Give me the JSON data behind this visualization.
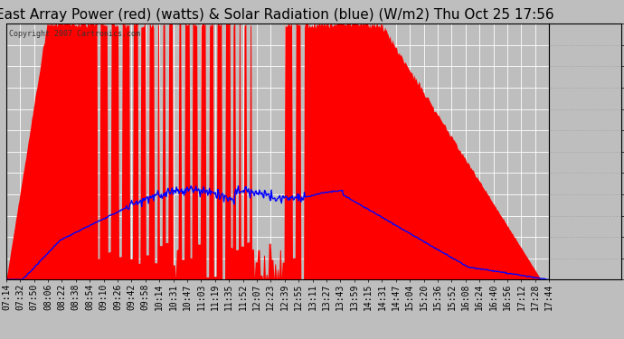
{
  "title": "East Array Power (red) (watts) & Solar Radiation (blue) (W/m2) Thu Oct 25 17:56",
  "copyright": "Copyright 2007 Cartronics.com",
  "yticks": [
    0.0,
    160.7,
    321.4,
    482.1,
    642.8,
    803.5,
    964.1,
    1124.8,
    1285.5,
    1446.2,
    1606.9,
    1767.6,
    1928.3
  ],
  "ymax": 1928.3,
  "ymin": 0.0,
  "bg_color": "#bebebe",
  "plot_bg_color": "#bebebe",
  "red_color": "#ff0000",
  "blue_color": "#0000ff",
  "title_fontsize": 11,
  "tick_fontsize": 7,
  "grid_color": "#ffffff",
  "time_labels": [
    "07:14",
    "07:32",
    "07:50",
    "08:06",
    "08:22",
    "08:38",
    "08:54",
    "09:10",
    "09:26",
    "09:42",
    "09:58",
    "10:14",
    "10:31",
    "10:47",
    "11:03",
    "11:19",
    "11:35",
    "11:52",
    "12:07",
    "12:23",
    "12:39",
    "12:55",
    "13:11",
    "13:27",
    "13:43",
    "13:59",
    "14:15",
    "14:31",
    "14:47",
    "15:04",
    "15:20",
    "15:36",
    "15:52",
    "16:08",
    "16:24",
    "16:40",
    "16:56",
    "17:12",
    "17:28",
    "17:44"
  ]
}
